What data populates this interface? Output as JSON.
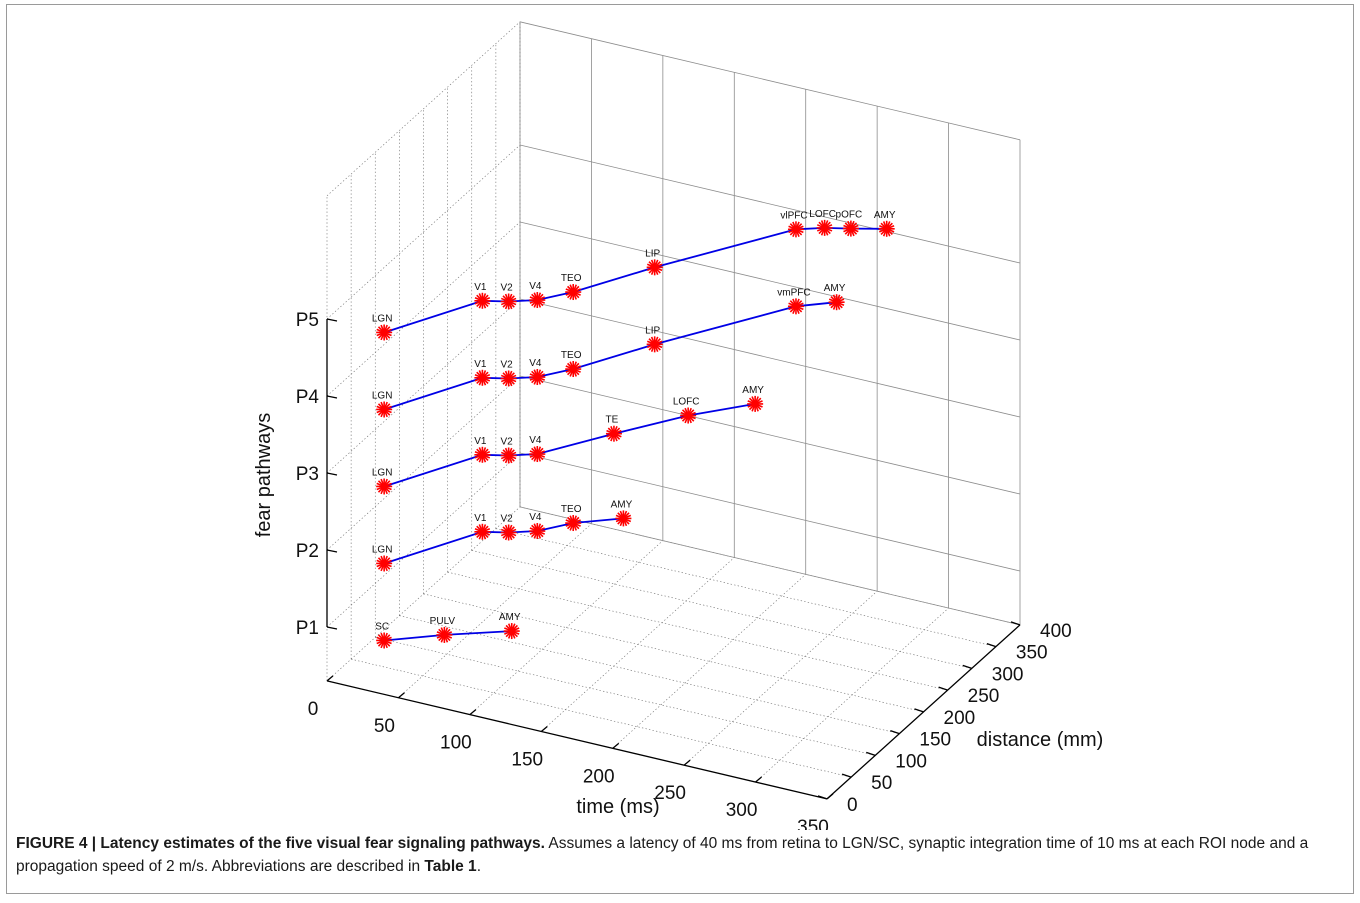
{
  "chart_data": {
    "type": "line3d",
    "xlabel": "time (ms)",
    "ylabel": "distance (mm)",
    "zlabel": "fear pathways",
    "x_ticks": [
      0,
      50,
      100,
      150,
      200,
      250,
      300,
      350
    ],
    "y_ticks": [
      0,
      50,
      100,
      150,
      200,
      250,
      300,
      350,
      400
    ],
    "z_ticks": [
      "P1",
      "P2",
      "P3",
      "P4",
      "P5"
    ],
    "xlim": [
      0,
      350
    ],
    "ylim": [
      0,
      400
    ],
    "grid": true,
    "series": [
      {
        "pathway": "P1",
        "nodes": [
          {
            "name": "SC",
            "time": 40,
            "distance": 0
          },
          {
            "name": "PULV",
            "time": 70,
            "distance": 36
          },
          {
            "name": "AMY",
            "time": 105,
            "distance": 72
          }
        ]
      },
      {
        "pathway": "P2",
        "nodes": [
          {
            "name": "LGN",
            "time": 40,
            "distance": 0
          },
          {
            "name": "V1",
            "time": 75,
            "distance": 100
          },
          {
            "name": "V2",
            "time": 90,
            "distance": 110
          },
          {
            "name": "V4",
            "time": 105,
            "distance": 125
          },
          {
            "name": "TEO",
            "time": 120,
            "distance": 155
          },
          {
            "name": "AMY",
            "time": 145,
            "distance": 185
          }
        ]
      },
      {
        "pathway": "P3",
        "nodes": [
          {
            "name": "LGN",
            "time": 40,
            "distance": 0
          },
          {
            "name": "V1",
            "time": 75,
            "distance": 100
          },
          {
            "name": "V2",
            "time": 90,
            "distance": 110
          },
          {
            "name": "V4",
            "time": 105,
            "distance": 125
          },
          {
            "name": "TE",
            "time": 135,
            "distance": 195
          },
          {
            "name": "LOFC",
            "time": 165,
            "distance": 260
          },
          {
            "name": "AMY",
            "time": 195,
            "distance": 310
          }
        ]
      },
      {
        "pathway": "P4",
        "nodes": [
          {
            "name": "LGN",
            "time": 40,
            "distance": 0
          },
          {
            "name": "V1",
            "time": 75,
            "distance": 100
          },
          {
            "name": "V2",
            "time": 90,
            "distance": 110
          },
          {
            "name": "V4",
            "time": 105,
            "distance": 125
          },
          {
            "name": "TEO",
            "time": 120,
            "distance": 155
          },
          {
            "name": "LIP",
            "time": 150,
            "distance": 235
          },
          {
            "name": "vmPFC",
            "time": 205,
            "distance": 365
          },
          {
            "name": "AMY",
            "time": 225,
            "distance": 390
          }
        ]
      },
      {
        "pathway": "P5",
        "nodes": [
          {
            "name": "LGN",
            "time": 40,
            "distance": 0
          },
          {
            "name": "V1",
            "time": 75,
            "distance": 100
          },
          {
            "name": "V2",
            "time": 90,
            "distance": 110
          },
          {
            "name": "V4",
            "time": 105,
            "distance": 125
          },
          {
            "name": "TEO",
            "time": 120,
            "distance": 155
          },
          {
            "name": "LIP",
            "time": 150,
            "distance": 235
          },
          {
            "name": "vlPFC",
            "time": 205,
            "distance": 365
          },
          {
            "name": "LOFC",
            "time": 220,
            "distance": 380
          },
          {
            "name": "pOFC",
            "time": 235,
            "distance": 390
          },
          {
            "name": "AMY",
            "time": 255,
            "distance": 405
          }
        ]
      }
    ],
    "line_color": "#0000e6",
    "marker_color": "#ff0000"
  },
  "caption": {
    "label": "FIGURE 4 | Latency estimates of the five visual fear signaling pathways.",
    "text_before_ref": " Assumes a latency of 40 ms from retina to LGN/SC, synaptic integration time of 10 ms at each ROI node and a propagation speed of 2 m/s. Abbreviations are described in ",
    "ref": "Table 1",
    "text_after_ref": "."
  }
}
